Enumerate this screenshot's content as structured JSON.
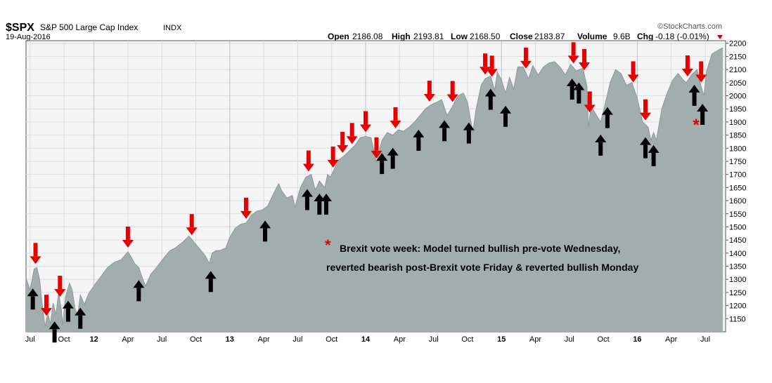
{
  "header": {
    "symbol": "$SPX",
    "name": "S&P 500 Large Cap Index",
    "exchange": "INDX",
    "date": "19-Aug-2016",
    "watermark": "©StockCharts.com",
    "quote": {
      "open_label": "Open",
      "open": "2186.08",
      "high_label": "High",
      "high": "2193.81",
      "low_label": "Low",
      "low": "2168.50",
      "close_label": "Close",
      "close": "2183.87",
      "volume_label": "Volume",
      "volume": "9.6B",
      "chg_label": "Chg",
      "chg": "-0.18 (-0.01%)"
    }
  },
  "annotation": {
    "star": "*",
    "line1": "Brexit vote week: Model turned bullish pre-vote Wednesday,",
    "line2": "reverted bearish post-Brexit vote Friday & reverted bullish Monday"
  },
  "colors": {
    "area_fill": "#a2aeae",
    "area_line": "#8b9999",
    "plot_bg": "#f5f5f5",
    "grid": "#dcdcdc",
    "sell_arrow": "#e60000",
    "buy_arrow": "#000000",
    "annotation_star": "#e60000"
  },
  "chart_data": {
    "type": "area",
    "title": "$SPX S&P 500 Large Cap Index INDX",
    "xlabel": "",
    "ylabel": "",
    "x_range": [
      2011.5,
      2016.65
    ],
    "ylim": [
      1100,
      2210
    ],
    "grid": true,
    "y_ticks": [
      1150,
      1200,
      1250,
      1300,
      1350,
      1400,
      1450,
      1500,
      1550,
      1600,
      1650,
      1700,
      1750,
      1800,
      1850,
      1900,
      1950,
      2000,
      2050,
      2100,
      2150,
      2200
    ],
    "x_ticks": [
      {
        "t": 2011.53,
        "label": "Jul",
        "bold": false
      },
      {
        "t": 2011.78,
        "label": "Oct",
        "bold": false
      },
      {
        "t": 2012.0,
        "label": "12",
        "bold": true
      },
      {
        "t": 2012.25,
        "label": "Apr",
        "bold": false
      },
      {
        "t": 2012.5,
        "label": "Jul",
        "bold": false
      },
      {
        "t": 2012.75,
        "label": "Oct",
        "bold": false
      },
      {
        "t": 2013.0,
        "label": "13",
        "bold": true
      },
      {
        "t": 2013.25,
        "label": "Apr",
        "bold": false
      },
      {
        "t": 2013.5,
        "label": "Jul",
        "bold": false
      },
      {
        "t": 2013.75,
        "label": "Oct",
        "bold": false
      },
      {
        "t": 2014.0,
        "label": "14",
        "bold": true
      },
      {
        "t": 2014.25,
        "label": "Apr",
        "bold": false
      },
      {
        "t": 2014.5,
        "label": "Jul",
        "bold": false
      },
      {
        "t": 2014.75,
        "label": "Oct",
        "bold": false
      },
      {
        "t": 2015.0,
        "label": "15",
        "bold": true
      },
      {
        "t": 2015.25,
        "label": "Apr",
        "bold": false
      },
      {
        "t": 2015.5,
        "label": "Jul",
        "bold": false
      },
      {
        "t": 2015.75,
        "label": "Oct",
        "bold": false
      },
      {
        "t": 2016.0,
        "label": "16",
        "bold": true
      },
      {
        "t": 2016.25,
        "label": "Apr",
        "bold": false
      },
      {
        "t": 2016.5,
        "label": "Jul",
        "bold": false
      }
    ],
    "series": [
      {
        "name": "$SPX",
        "points": [
          [
            2011.5,
            1305
          ],
          [
            2011.53,
            1260
          ],
          [
            2011.56,
            1340
          ],
          [
            2011.58,
            1345
          ],
          [
            2011.6,
            1300
          ],
          [
            2011.62,
            1200
          ],
          [
            2011.64,
            1120
          ],
          [
            2011.66,
            1170
          ],
          [
            2011.68,
            1130
          ],
          [
            2011.7,
            1210
          ],
          [
            2011.72,
            1165
          ],
          [
            2011.74,
            1250
          ],
          [
            2011.76,
            1185
          ],
          [
            2011.77,
            1125
          ],
          [
            2011.79,
            1230
          ],
          [
            2011.82,
            1285
          ],
          [
            2011.84,
            1260
          ],
          [
            2011.86,
            1190
          ],
          [
            2011.88,
            1160
          ],
          [
            2011.9,
            1240
          ],
          [
            2011.93,
            1205
          ],
          [
            2011.96,
            1245
          ],
          [
            2012.0,
            1275
          ],
          [
            2012.05,
            1310
          ],
          [
            2012.1,
            1345
          ],
          [
            2012.15,
            1365
          ],
          [
            2012.2,
            1375
          ],
          [
            2012.25,
            1405
          ],
          [
            2012.28,
            1380
          ],
          [
            2012.3,
            1360
          ],
          [
            2012.33,
            1345
          ],
          [
            2012.36,
            1300
          ],
          [
            2012.38,
            1275
          ],
          [
            2012.42,
            1320
          ],
          [
            2012.46,
            1345
          ],
          [
            2012.52,
            1385
          ],
          [
            2012.56,
            1410
          ],
          [
            2012.6,
            1420
          ],
          [
            2012.66,
            1445
          ],
          [
            2012.7,
            1465
          ],
          [
            2012.74,
            1440
          ],
          [
            2012.78,
            1415
          ],
          [
            2012.82,
            1390
          ],
          [
            2012.85,
            1360
          ],
          [
            2012.87,
            1400
          ],
          [
            2012.9,
            1410
          ],
          [
            2012.93,
            1410
          ],
          [
            2012.97,
            1420
          ],
          [
            2013.0,
            1460
          ],
          [
            2013.04,
            1495
          ],
          [
            2013.08,
            1510
          ],
          [
            2013.12,
            1515
          ],
          [
            2013.16,
            1545
          ],
          [
            2013.2,
            1560
          ],
          [
            2013.24,
            1565
          ],
          [
            2013.28,
            1580
          ],
          [
            2013.32,
            1625
          ],
          [
            2013.36,
            1665
          ],
          [
            2013.38,
            1640
          ],
          [
            2013.42,
            1610
          ],
          [
            2013.46,
            1620
          ],
          [
            2013.48,
            1575
          ],
          [
            2013.52,
            1650
          ],
          [
            2013.56,
            1690
          ],
          [
            2013.6,
            1700
          ],
          [
            2013.63,
            1640
          ],
          [
            2013.66,
            1675
          ],
          [
            2013.7,
            1650
          ],
          [
            2013.72,
            1700
          ],
          [
            2013.74,
            1690
          ],
          [
            2013.76,
            1710
          ],
          [
            2013.8,
            1755
          ],
          [
            2013.84,
            1770
          ],
          [
            2013.88,
            1790
          ],
          [
            2013.92,
            1810
          ],
          [
            2013.96,
            1840
          ],
          [
            2014.0,
            1845
          ],
          [
            2014.04,
            1840
          ],
          [
            2014.08,
            1745
          ],
          [
            2014.12,
            1830
          ],
          [
            2014.16,
            1860
          ],
          [
            2014.2,
            1850
          ],
          [
            2014.24,
            1870
          ],
          [
            2014.28,
            1865
          ],
          [
            2014.32,
            1880
          ],
          [
            2014.36,
            1900
          ],
          [
            2014.4,
            1925
          ],
          [
            2014.44,
            1950
          ],
          [
            2014.48,
            1965
          ],
          [
            2014.52,
            1975
          ],
          [
            2014.56,
            1985
          ],
          [
            2014.6,
            1925
          ],
          [
            2014.64,
            1960
          ],
          [
            2014.68,
            2000
          ],
          [
            2014.72,
            2010
          ],
          [
            2014.75,
            1975
          ],
          [
            2014.79,
            1860
          ],
          [
            2014.81,
            1940
          ],
          [
            2014.85,
            2040
          ],
          [
            2014.88,
            2065
          ],
          [
            2014.92,
            2075
          ],
          [
            2014.95,
            2020
          ],
          [
            2014.97,
            2090
          ],
          [
            2015.0,
            2060
          ],
          [
            2015.03,
            2010
          ],
          [
            2015.06,
            2070
          ],
          [
            2015.09,
            2025
          ],
          [
            2015.12,
            2110
          ],
          [
            2015.16,
            2110
          ],
          [
            2015.2,
            2065
          ],
          [
            2015.23,
            2115
          ],
          [
            2015.27,
            2080
          ],
          [
            2015.31,
            2110
          ],
          [
            2015.35,
            2125
          ],
          [
            2015.39,
            2130
          ],
          [
            2015.43,
            2110
          ],
          [
            2015.47,
            2080
          ],
          [
            2015.51,
            2120
          ],
          [
            2015.55,
            2095
          ],
          [
            2015.6,
            2105
          ],
          [
            2015.63,
            2035
          ],
          [
            2015.64,
            1880
          ],
          [
            2015.66,
            1960
          ],
          [
            2015.7,
            1925
          ],
          [
            2015.73,
            1900
          ],
          [
            2015.76,
            1960
          ],
          [
            2015.8,
            2050
          ],
          [
            2015.84,
            2100
          ],
          [
            2015.88,
            2085
          ],
          [
            2015.92,
            2040
          ],
          [
            2015.96,
            2050
          ],
          [
            2016.0,
            1990
          ],
          [
            2016.04,
            1900
          ],
          [
            2016.08,
            1880
          ],
          [
            2016.1,
            1830
          ],
          [
            2016.12,
            1860
          ],
          [
            2016.14,
            1830
          ],
          [
            2016.18,
            1950
          ],
          [
            2016.22,
            2010
          ],
          [
            2016.26,
            2060
          ],
          [
            2016.3,
            2085
          ],
          [
            2016.33,
            2065
          ],
          [
            2016.36,
            2050
          ],
          [
            2016.4,
            2080
          ],
          [
            2016.44,
            2100
          ],
          [
            2016.47,
            2035
          ],
          [
            2016.49,
            2000
          ],
          [
            2016.51,
            2095
          ],
          [
            2016.55,
            2160
          ],
          [
            2016.6,
            2175
          ],
          [
            2016.63,
            2183
          ]
        ]
      }
    ],
    "signals": {
      "sell": [
        2011.57,
        2011.65,
        2011.75,
        2012.25,
        2012.72,
        2013.12,
        2013.58,
        2013.76,
        2013.83,
        2013.9,
        2014.0,
        2014.08,
        2014.22,
        2014.47,
        2014.64,
        2014.88,
        2014.93,
        2015.18,
        2015.53,
        2015.61,
        2015.65,
        2015.97,
        2016.06,
        2016.37,
        2016.47
      ],
      "buy": [
        2011.55,
        2011.71,
        2011.81,
        2011.9,
        2012.33,
        2012.86,
        2013.26,
        2013.57,
        2013.66,
        2013.71,
        2014.12,
        2014.2,
        2014.39,
        2014.58,
        2014.76,
        2014.92,
        2015.03,
        2015.52,
        2015.57,
        2015.73,
        2015.78,
        2016.06,
        2016.12,
        2016.42,
        2016.48
      ]
    },
    "annotations": [
      "* Brexit vote week: Model turned bullish pre-vote Wednesday,",
      "reverted bearish post-Brexit vote Friday & reverted bullish Monday"
    ]
  }
}
